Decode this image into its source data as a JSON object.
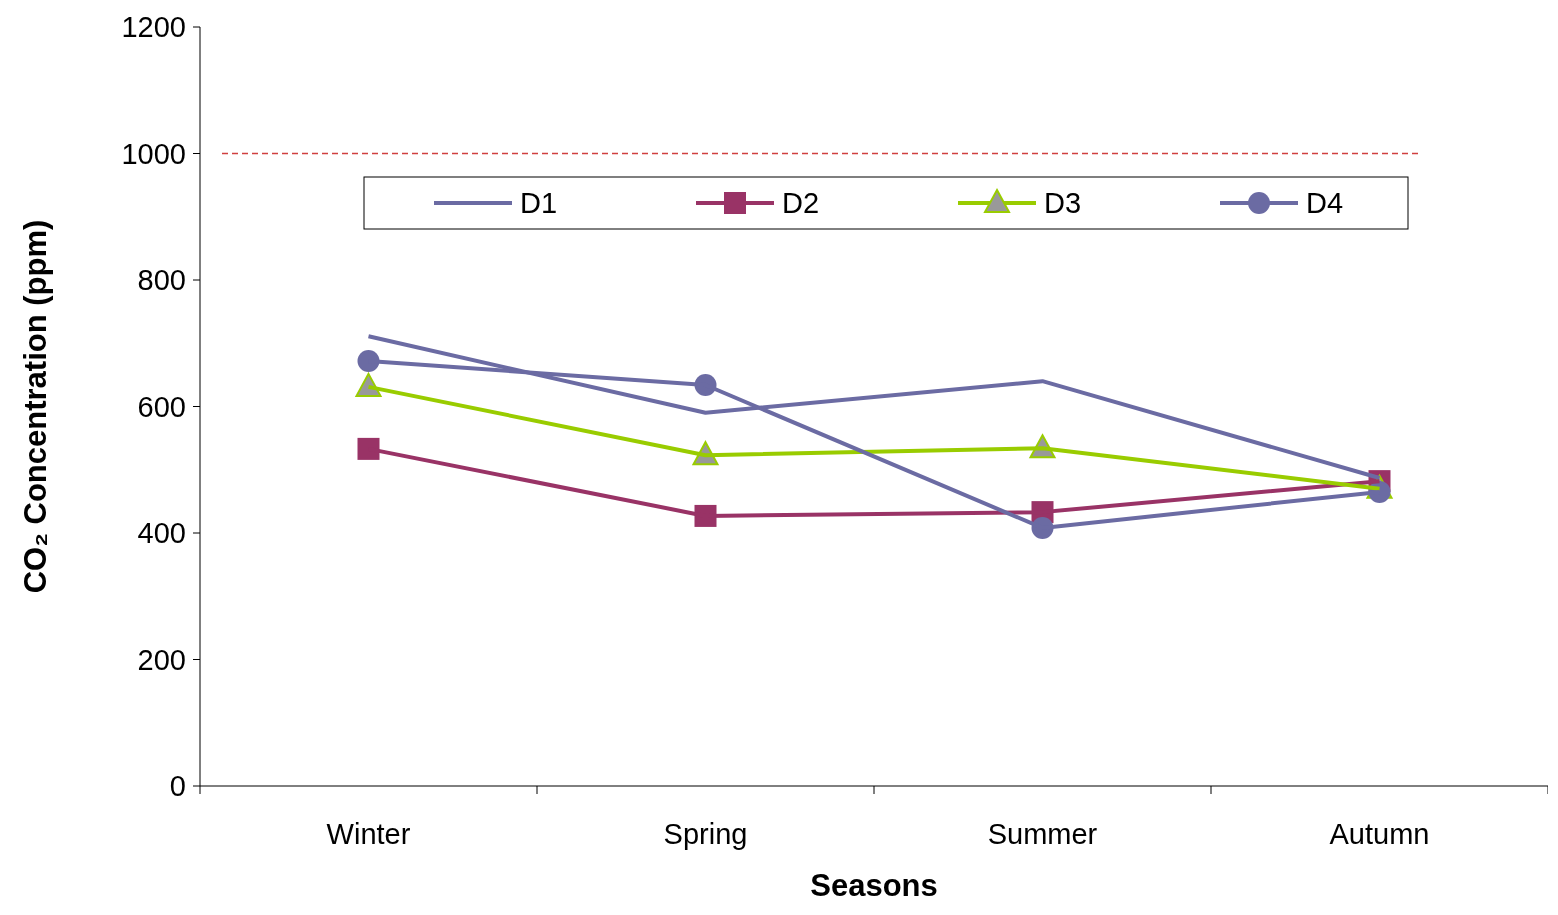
{
  "chart_data": {
    "type": "line",
    "xlabel": "Seasons",
    "ylabel": "CO₂ Concentration (ppm)",
    "categories": [
      "Winter",
      "Spring",
      "Summer",
      "Autumn"
    ],
    "series": [
      {
        "name": "D1",
        "color": "#6b6ba3",
        "marker": "none",
        "values": [
          711,
          590,
          640,
          487
        ]
      },
      {
        "name": "D2",
        "color": "#993366",
        "marker": "square",
        "values": [
          533,
          427,
          433,
          482
        ]
      },
      {
        "name": "D3",
        "color": "#99cc00",
        "marker": "triangle",
        "values": [
          631,
          523,
          534,
          470
        ]
      },
      {
        "name": "D4",
        "color": "#6b6ba3",
        "marker": "circle",
        "values": [
          672,
          634,
          408,
          465
        ]
      }
    ],
    "ylim": [
      0,
      1200
    ],
    "yticks": [
      0,
      200,
      400,
      600,
      800,
      1000,
      1200
    ],
    "ref_lines": [
      {
        "axis": "y",
        "value": 1000,
        "color": "#d04040",
        "line_style": "dashed"
      }
    ],
    "legend": "top",
    "grid": false
  }
}
